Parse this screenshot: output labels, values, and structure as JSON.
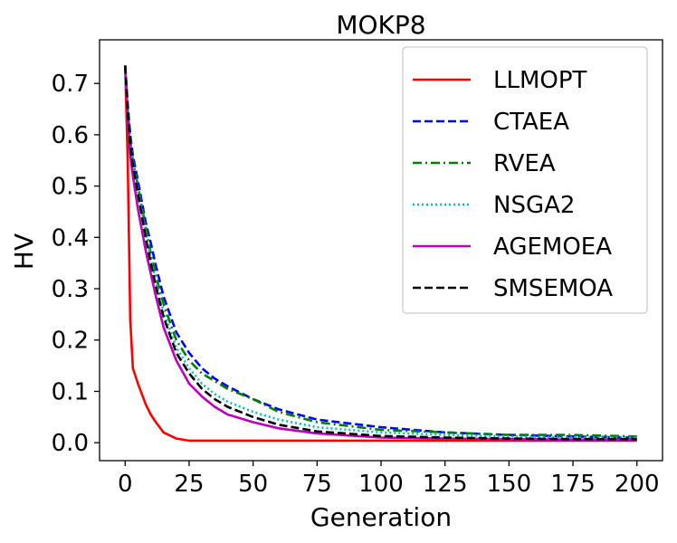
{
  "chart_data": {
    "type": "line",
    "title": "MOKP8",
    "xlabel": "Generation",
    "ylabel": "HV",
    "xlim": [
      -10,
      210
    ],
    "ylim": [
      -0.035,
      0.785
    ],
    "xticks": [
      0,
      25,
      50,
      75,
      100,
      125,
      150,
      175,
      200
    ],
    "xtick_labels": [
      "0",
      "25",
      "50",
      "75",
      "100",
      "125",
      "150",
      "175",
      "200"
    ],
    "yticks": [
      0.0,
      0.1,
      0.2,
      0.3,
      0.4,
      0.5,
      0.6,
      0.7
    ],
    "ytick_labels": [
      "0.0",
      "0.1",
      "0.2",
      "0.3",
      "0.4",
      "0.5",
      "0.6",
      "0.7"
    ],
    "grid": false,
    "legend_position": "top-right",
    "x": [
      0,
      1,
      2,
      3,
      5,
      8,
      10,
      12,
      15,
      20,
      25,
      30,
      35,
      40,
      50,
      60,
      75,
      100,
      125,
      150,
      175,
      200
    ],
    "series": [
      {
        "name": "LLMOPT",
        "color": "#ff0000",
        "dash": "solid",
        "values": [
          0.735,
          0.55,
          0.24,
          0.145,
          0.115,
          0.075,
          0.055,
          0.04,
          0.02,
          0.008,
          0.004,
          0.004,
          0.004,
          0.004,
          0.004,
          0.004,
          0.004,
          0.004,
          0.004,
          0.004,
          0.004,
          0.004
        ]
      },
      {
        "name": "CTAEA",
        "color": "#0000ff",
        "dash": "dashed",
        "values": [
          0.735,
          0.66,
          0.6,
          0.56,
          0.51,
          0.43,
          0.39,
          0.345,
          0.285,
          0.215,
          0.175,
          0.145,
          0.125,
          0.11,
          0.085,
          0.065,
          0.045,
          0.03,
          0.02,
          0.015,
          0.012,
          0.01
        ]
      },
      {
        "name": "RVEA",
        "color": "#008000",
        "dash": "dashdot",
        "values": [
          0.735,
          0.65,
          0.59,
          0.55,
          0.5,
          0.42,
          0.37,
          0.325,
          0.27,
          0.2,
          0.16,
          0.135,
          0.12,
          0.105,
          0.085,
          0.06,
          0.04,
          0.025,
          0.02,
          0.015,
          0.015,
          0.012
        ]
      },
      {
        "name": "NSGA2",
        "color": "#00bfbf",
        "dash": "dotted",
        "values": [
          0.735,
          0.65,
          0.585,
          0.545,
          0.49,
          0.41,
          0.36,
          0.315,
          0.255,
          0.185,
          0.145,
          0.115,
          0.095,
          0.08,
          0.06,
          0.045,
          0.03,
          0.02,
          0.015,
          0.012,
          0.01,
          0.01
        ]
      },
      {
        "name": "AGEMOEA",
        "color": "#bf00bf",
        "dash": "solid",
        "values": [
          0.735,
          0.63,
          0.56,
          0.52,
          0.455,
          0.375,
          0.33,
          0.285,
          0.225,
          0.16,
          0.115,
          0.09,
          0.07,
          0.055,
          0.04,
          0.028,
          0.018,
          0.01,
          0.008,
          0.007,
          0.006,
          0.006
        ]
      },
      {
        "name": "SMSEMOA",
        "color": "#000000",
        "dash": "dashed",
        "values": [
          0.735,
          0.645,
          0.58,
          0.54,
          0.485,
          0.4,
          0.35,
          0.305,
          0.245,
          0.175,
          0.135,
          0.105,
          0.085,
          0.07,
          0.05,
          0.035,
          0.022,
          0.013,
          0.01,
          0.008,
          0.007,
          0.007
        ]
      }
    ]
  }
}
